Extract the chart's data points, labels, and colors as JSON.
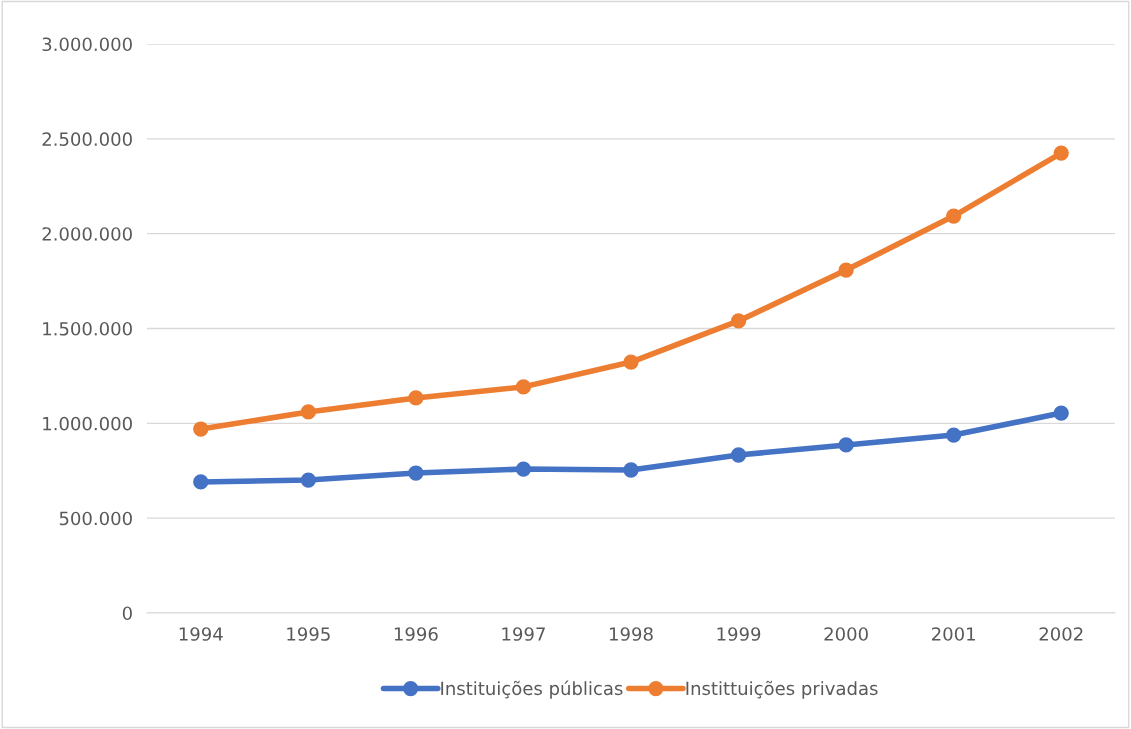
{
  "chart_data": {
    "type": "line",
    "categories": [
      "1994",
      "1995",
      "1996",
      "1997",
      "1998",
      "1999",
      "2000",
      "2001",
      "2002"
    ],
    "series": [
      {
        "name": "Instituições públicas",
        "color": "#4472c4",
        "values": [
          691000,
          701000,
          738000,
          759000,
          754000,
          833000,
          886000,
          938000,
          1054000
        ]
      },
      {
        "name": "Instittuições privadas",
        "color": "#ed7d31",
        "values": [
          970000,
          1060000,
          1134000,
          1192000,
          1323000,
          1540000,
          1808000,
          2093000,
          2425000
        ]
      }
    ],
    "ylim": [
      0,
      3000000
    ],
    "yticks": [
      0,
      {
        "value": 500000,
        "label": "500.000"
      },
      {
        "value": 1000000,
        "label": "1.000.000"
      },
      {
        "value": 1500000,
        "label": "1.500.000"
      },
      {
        "value": 2000000,
        "label": "2.000.000"
      },
      {
        "value": 2500000,
        "label": "2.500.000"
      },
      {
        "value": 3000000,
        "label": "3.000.000"
      }
    ],
    "grid": "y",
    "legend": "bottom",
    "marker": "circle",
    "line_style": "solid"
  }
}
